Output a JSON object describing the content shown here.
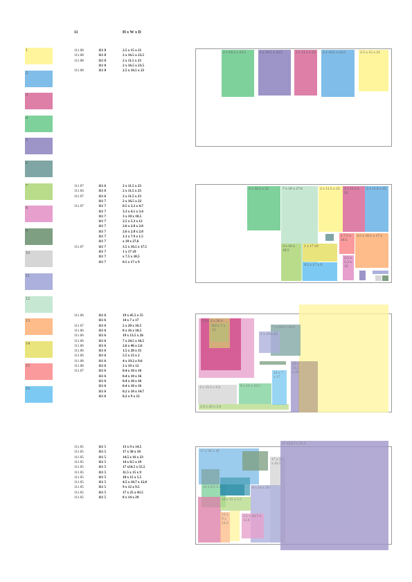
{
  "header": {
    "col_no": "11",
    "col_dims": "H x W x D"
  },
  "palette": [
    {
      "label": "1",
      "color": "#fff59d"
    },
    {
      "label": "2",
      "color": "#80bde8"
    },
    {
      "label": "3",
      "color": "#de7fa8"
    },
    {
      "label": "4",
      "color": "#7fd19c"
    },
    {
      "label": "5",
      "color": "#9d94c8"
    },
    {
      "label": "6",
      "color": "#7fa6a4"
    },
    {
      "label": "7",
      "color": "#b8dc8a"
    },
    {
      "label": "8",
      "color": "#e7a0cd"
    },
    {
      "label": "9",
      "color": "#7e9f82"
    },
    {
      "label": "10",
      "color": "#d6d6d6"
    },
    {
      "label": "11",
      "color": "#acb0dc"
    },
    {
      "label": "12",
      "color": "#c6e8d2"
    },
    {
      "label": "13",
      "color": "#fdbc8a"
    },
    {
      "label": "14",
      "color": "#eae47c"
    },
    {
      "label": "15",
      "color": "#fb9a9c"
    },
    {
      "label": "16",
      "color": "#7ccaf3"
    }
  ],
  "sections": [
    {
      "rows": [
        {
          "a": "111.08",
          "b": "111 8",
          "c": "2.5 x 15 x 21"
        },
        {
          "a": "111.08",
          "b": "111 8",
          "c": "2 x 16.5 x 23.5"
        },
        {
          "a": "111.08",
          "b": "111 8",
          "c": "2 x 11.5 x 23"
        },
        {
          "a": "",
          "b": "111 8",
          "c": "2 x 16.5 x 23.5"
        },
        {
          "a": "111.08",
          "b": "111 8",
          "c": "2.5 x 16.5 x 23"
        }
      ],
      "boxes": [
        {
          "label": "2 x 16.5 x 23.5",
          "color": "#7fd19c"
        },
        {
          "label": "2 x 16.5 x 23.5",
          "color": "#9d94c8"
        },
        {
          "label": "2 x 11.5 x 23",
          "color": "#de7fa8"
        },
        {
          "label": "2 x 16.5 x 23.5",
          "color": "#80bde8"
        },
        {
          "label": "2.5 x 15 x 21",
          "color": "#fff59d"
        }
      ]
    },
    {
      "rows": [
        {
          "a": "111.07",
          "b": "111 6",
          "c": "2 x 11.5 x 23"
        },
        {
          "a": "111.04",
          "b": "111 6",
          "c": "2 x 11.5 x 23"
        },
        {
          "a": "111.07",
          "b": "111 6",
          "c": "2 x 11.5 x 23"
        },
        {
          "a": "",
          "b": "111 7",
          "c": "2 x 16.5 x 22"
        },
        {
          "a": "111.07",
          "b": "111 7",
          "c": "0.5 x 3.2 x 4.7"
        },
        {
          "a": "",
          "b": "111 7",
          "c": "3.3 x 4.1 x 3.4"
        },
        {
          "a": "",
          "b": "111 7",
          "c": "3 x 10 x 18.5"
        },
        {
          "a": "",
          "b": "111 7",
          "c": "2.5 x 5.3 x 12"
        },
        {
          "a": "",
          "b": "111 7",
          "c": "2.6 x 2.8 x 2.8"
        },
        {
          "a": "",
          "b": "111 7",
          "c": "2.6 x 2.8 x 2.8"
        },
        {
          "a": "",
          "b": "111 7",
          "c": "1.1 x 7.9 x 1.5"
        },
        {
          "a": "",
          "b": "111 7",
          "c": "x 18 x 27.6"
        },
        {
          "a": "111.07",
          "b": "111 7",
          "c": "3.5 x 16.5 x 17.5"
        },
        {
          "a": "",
          "b": "111 7",
          "c": "1 x 17 x9"
        },
        {
          "a": "",
          "b": "111 7",
          "c": "x 7.5 x 10.5"
        },
        {
          "a": "",
          "b": "111 7",
          "c": "0.5 x 17 x 9"
        }
      ],
      "boxes": [
        {
          "label": "2 x 16.5 x 22",
          "color": "#7fd19c"
        },
        {
          "label": "7 x 18 x 27.6",
          "color": "#c6e8d2"
        },
        {
          "label": "2 x 11.5 x 23",
          "color": "#fff59d"
        },
        {
          "label": "2 x 11.5 x 23",
          "color": "#de7fa8"
        },
        {
          "label": "2 x 11.5 x 23",
          "color": "#80bde8"
        },
        {
          "label": "3 x 10 x 18.5",
          "color": "#b8dc8a"
        },
        {
          "label": "1 x 17 x9",
          "color": "#eae47c"
        },
        {
          "label": "0.5 x 17 x 9",
          "color": "#7ccaf3"
        },
        {
          "label": "x 7.5 x 10.5",
          "color": "#fb9a9c"
        },
        {
          "label": "3.5 x 16.5 x 17.5",
          "color": "#fdbc8a"
        },
        {
          "label": "2.5 x 5.3 x 12",
          "color": "#e7a0cd"
        },
        {
          "label": "",
          "color": "#7fa6a4"
        },
        {
          "label": "",
          "color": "#9d94c8"
        },
        {
          "label": "",
          "color": "#acb0dc"
        },
        {
          "label": "",
          "color": "#d6d6d6"
        },
        {
          "label": "",
          "color": "#7e9f82"
        }
      ]
    },
    {
      "rows": [
        {
          "a": "111.06",
          "b": "111 6",
          "c": "19 x 45.5 x 55"
        },
        {
          "a": "",
          "b": "111 6",
          "c": "14 x 7 x 17"
        },
        {
          "a": "111.07",
          "b": "111 6",
          "c": "2 x 20 x 16.5"
        },
        {
          "a": "111.06",
          "b": "111 6",
          "c": "8 x 16 x 10.5"
        },
        {
          "a": "111.06",
          "b": "111 6",
          "c": "19 x 13.5 x 26"
        },
        {
          "a": "111.06",
          "b": "111 6",
          "c": "7 x 24.5 x 16.5"
        },
        {
          "a": "111.06",
          "b": "111 6",
          "c": "2.6 x 46 x 2.6"
        },
        {
          "a": "111.06",
          "b": "111 6",
          "c": "1.5 x 28 x 31"
        },
        {
          "a": "111.06",
          "b": "111 6",
          "c": "5.5 x 13 x 2"
        },
        {
          "a": "111.08",
          "b": "111 6",
          "c": "4 x 19.2 x 9.6"
        },
        {
          "a": "111.08",
          "b": "111 6",
          "c": "2 x 19 x 12"
        },
        {
          "a": "111.07",
          "b": "111 6",
          "c": "0.4 x 10 x 16"
        },
        {
          "a": "",
          "b": "111 6",
          "c": "0.4 x 10 x 16"
        },
        {
          "a": "",
          "b": "111 6",
          "c": "0.4 x 10 x 16"
        },
        {
          "a": "",
          "b": "111 6",
          "c": "0.4 x 10 x 16"
        },
        {
          "a": "",
          "b": "111 6",
          "c": "0.2 x 10 x 14.7"
        },
        {
          "a": "",
          "b": "111 6",
          "c": "0.2 x 9 x 12"
        }
      ],
      "boxes": [
        {
          "label": "",
          "color": "#fff59d"
        },
        {
          "label": "1.5 x 28 x 31",
          "color": "#e7a0cd"
        },
        {
          "label": "19 x 45.5 x 55",
          "color": "#d04785"
        },
        {
          "label": "2.6 x 46 x 2.6",
          "color": "#b8dc8a"
        },
        {
          "label": "4 x 19.2 x 9.6",
          "color": "#d6d6d6"
        },
        {
          "label": "8 x 16 x 10.5",
          "color": "#7fd19c"
        },
        {
          "label": "14 x 7 x 17",
          "color": "#7ccaf3"
        },
        {
          "label": "7 x 24.5 x 16.5",
          "color": "#7fa6a4"
        },
        {
          "label": "2 x 19 x 12",
          "color": "#acb0dc"
        },
        {
          "label": "19 x 13.5 x 26",
          "color": "#9d94c8"
        },
        {
          "label": "",
          "color": "#b8a48a"
        },
        {
          "label": "",
          "color": "#7e9f82"
        },
        {
          "label": "2 x 20 x 16.5",
          "color": "#d7c377"
        },
        {
          "label": "8.2 x 7 x 12",
          "color": "#b8bc78"
        }
      ]
    },
    {
      "rows": [
        {
          "a": "111.05",
          "b": "111 5",
          "c": "13 x 9 x 14.5"
        },
        {
          "a": "111.05",
          "b": "111 5",
          "c": "17 x 30 x 18"
        },
        {
          "a": "111.05",
          "b": "111 5",
          "c": "14.5 x 16 x 23"
        },
        {
          "a": "111.05",
          "b": "111 5",
          "c": "14 x 8.5 x 19"
        },
        {
          "a": "111.05",
          "b": "111 5",
          "c": "17 x54.5 x 55.5"
        },
        {
          "a": "111.05",
          "b": "111 5",
          "c": "11.5 x 15 x 9"
        },
        {
          "a": "111.05",
          "b": "111 5",
          "c": "10 x 15 x 5.5"
        },
        {
          "a": "111.05",
          "b": "111 5",
          "c": "4.5 x 10.7 x 12.8"
        },
        {
          "a": "111.05",
          "b": "111 5",
          "c": "9 x 12 x 9.5"
        },
        {
          "a": "111.05",
          "b": "111 5",
          "c": "17 x 25 x 43.5"
        },
        {
          "a": "111.05",
          "b": "111 5",
          "c": "8 x 14 x 29"
        }
      ],
      "boxes": [
        {
          "label": "17 x 30 x 18",
          "color": "#80bde8"
        },
        {
          "label": "17 x 25 x 43.5",
          "color": "#d6d6d6"
        },
        {
          "label": "17 x54.5 x 55.5",
          "color": "#9d94c8"
        },
        {
          "label": "8 x 14 x 29",
          "color": "#acb0dc"
        },
        {
          "label": "14 x 8.5 x 19",
          "color": "#7fd19c"
        },
        {
          "label": "",
          "color": "#de7fa8"
        },
        {
          "label": "10 x 15 x 5.5",
          "color": "#b8dc8a"
        },
        {
          "label": "13 x 9 x 14.5",
          "color": "#fdbc8a"
        },
        {
          "label": "",
          "color": "#fff59d"
        },
        {
          "label": "4.5 x 10.7 x 12.8",
          "color": "#e7a0cd"
        },
        {
          "label": "",
          "color": "#7e9f82"
        },
        {
          "label": "",
          "color": "#7fa6a4"
        },
        {
          "label": "",
          "color": "#4ca0b8"
        },
        {
          "label": "",
          "color": "#2f8fa8"
        }
      ]
    }
  ]
}
